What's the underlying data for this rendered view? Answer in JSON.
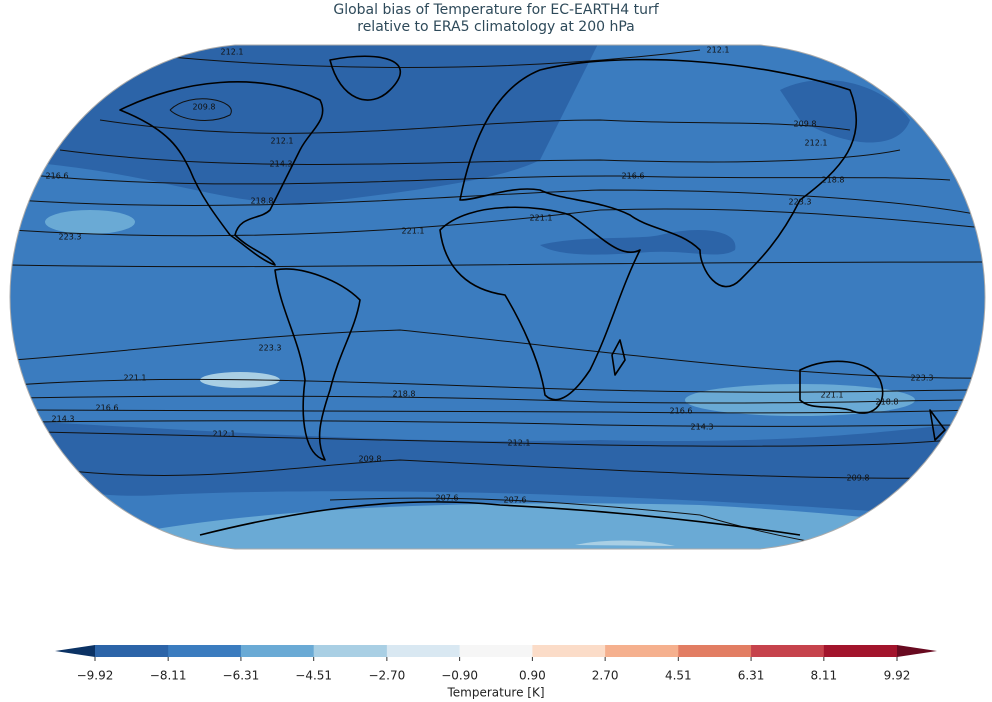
{
  "title": [
    "Global bias of Temperature for EC-EARTH4 turf",
    "relative to ERA5 climatology at 200 hPa"
  ],
  "map": {
    "contour_labels": [
      "212.1",
      "209.8",
      "212.1",
      "214.3",
      "216.6",
      "218.8",
      "223.3",
      "221.1",
      "221.1",
      "212.1",
      "209.8",
      "212.1",
      "216.6",
      "218.8",
      "223.3",
      "223.3",
      "221.1",
      "216.6",
      "214.3",
      "218.8",
      "216.6",
      "214.3",
      "212.1",
      "212.1",
      "209.8",
      "207.6",
      "207.6",
      "209.8",
      "221.1",
      "218.8",
      "223.3"
    ]
  },
  "colorbar": {
    "label": "Temperature [K]",
    "ticks": [
      {
        "value": -9.92,
        "label": "−9.92"
      },
      {
        "value": -8.11,
        "label": "−8.11"
      },
      {
        "value": -6.31,
        "label": "−6.31"
      },
      {
        "value": -4.51,
        "label": "−4.51"
      },
      {
        "value": -2.7,
        "label": "−2.70"
      },
      {
        "value": -0.9,
        "label": "−0.90"
      },
      {
        "value": 0.9,
        "label": "0.90"
      },
      {
        "value": 2.7,
        "label": "2.70"
      },
      {
        "value": 4.51,
        "label": "4.51"
      },
      {
        "value": 6.31,
        "label": "6.31"
      },
      {
        "value": 8.11,
        "label": "8.11"
      },
      {
        "value": 9.92,
        "label": "9.92"
      }
    ],
    "colors": [
      "#2c64a8",
      "#3b7cbf",
      "#6aaad5",
      "#a9cfe4",
      "#d9e8f2",
      "#f6f6f6",
      "#fbdcc8",
      "#f5b08e",
      "#e27d63",
      "#c6434c",
      "#a2142c"
    ],
    "extend_colors": [
      "#0b3264",
      "#680a20"
    ]
  }
}
